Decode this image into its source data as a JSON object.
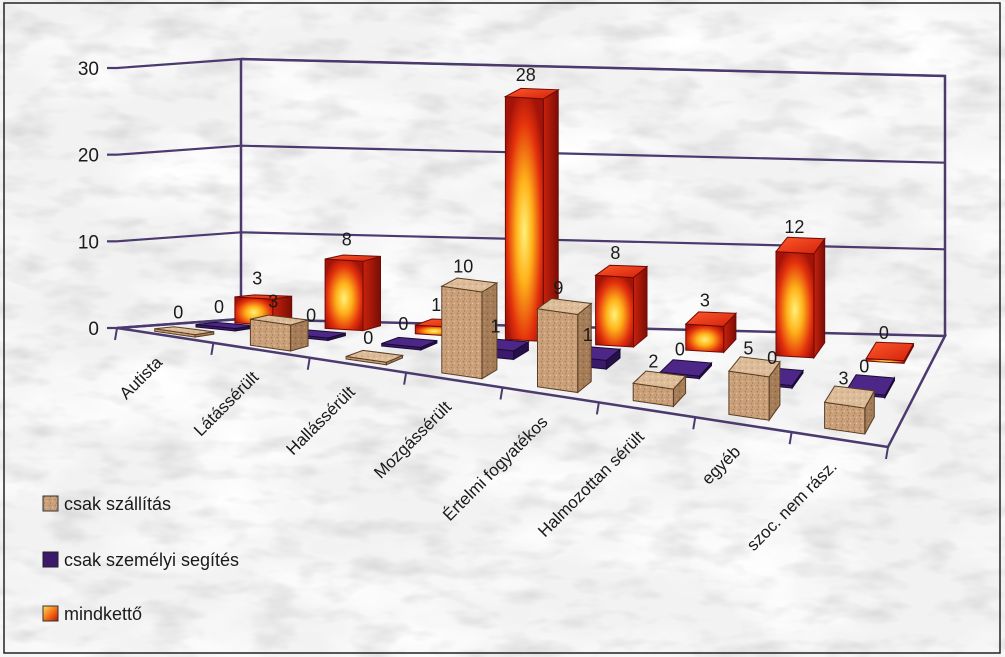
{
  "chart_data": {
    "type": "bar",
    "categories": [
      "Autista",
      "Látássérült",
      "Hallássérült",
      "Mozgássérült",
      "Értelmi fogyatékos",
      "Halmozottan sérült",
      "egyéb",
      "szoc. nem rász."
    ],
    "series": [
      {
        "name": "csak szállítás",
        "values": [
          0,
          3,
          0,
          10,
          9,
          2,
          5,
          3
        ]
      },
      {
        "name": "csak személyi segítés",
        "values": [
          0,
          0,
          0,
          1,
          1,
          0,
          0,
          0
        ]
      },
      {
        "name": "mindkettő",
        "values": [
          3,
          8,
          1,
          28,
          8,
          3,
          12,
          0
        ]
      }
    ],
    "ylim": [
      0,
      30
    ],
    "yticks": [
      "0",
      "10",
      "20",
      "30"
    ],
    "grid": true,
    "legend_position": "bottom-left",
    "colors": {
      "csak szállítás": "#c9a07a",
      "csak személyi segítés": "#3b1a6b",
      "mindkettő": "#e02010",
      "frame": "#4b3a6e"
    }
  }
}
